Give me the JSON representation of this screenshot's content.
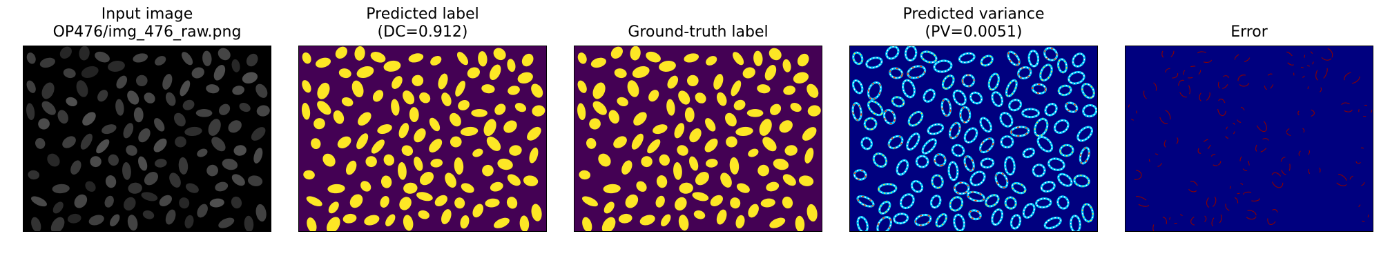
{
  "panels": [
    {
      "title_line1": "Input image",
      "title_line2": "OP476/img_476_raw.png",
      "kind": "raw",
      "background": "#000000"
    },
    {
      "title_line1": "Predicted label",
      "title_line2": "(DC=0.912)",
      "kind": "label",
      "background": "#440154",
      "foreground": "#fde725"
    },
    {
      "title_line1": "Ground-truth label",
      "title_line2": "",
      "kind": "label",
      "background": "#440154",
      "foreground": "#fde725"
    },
    {
      "title_line1": "Predicted variance",
      "title_line2": "(PV=0.0051)",
      "kind": "variance",
      "background": "#00007f"
    },
    {
      "title_line1": "Error",
      "title_line2": "",
      "kind": "error",
      "background": "#00007f"
    }
  ]
}
